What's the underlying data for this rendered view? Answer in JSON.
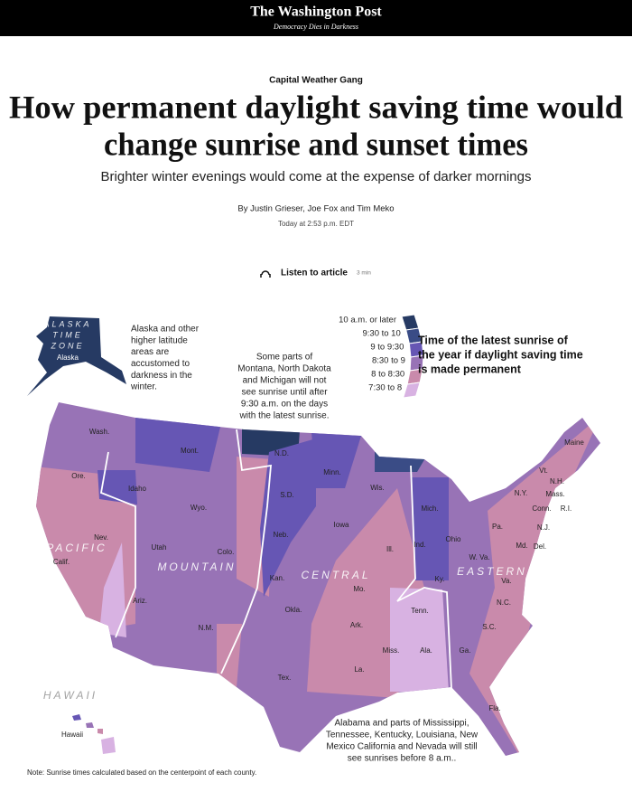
{
  "header": {
    "logo": "The Washington Post",
    "tagline": "Democracy Dies in Darkness"
  },
  "article": {
    "kicker": "Capital Weather Gang",
    "headline": [
      "How permanent daylight saving time would",
      "change sunrise and sunset times"
    ],
    "subheadline": "Brighter winter evenings would come at the expense of darker mornings",
    "byline": "By Justin Grieser, Joe Fox and Tim Meko",
    "timestamp": "Today at 2:53 p.m. EDT",
    "listen": {
      "label": "Listen to article",
      "duration": "3 min"
    }
  },
  "map": {
    "legend": {
      "title": [
        "Time of the latest sunrise of",
        "the year if daylight saving time",
        "is made permanent"
      ],
      "items": [
        {
          "label": "10 a.m. or later",
          "color": "#263a63"
        },
        {
          "label": "9:30 to 10",
          "color": "#3a4c86"
        },
        {
          "label": "9 to 9:30",
          "color": "#6656b4"
        },
        {
          "label": "8:30 to 9",
          "color": "#9873b6"
        },
        {
          "label": "8 to 8:30",
          "color": "#c98aab"
        },
        {
          "label": "7:30 to 8",
          "color": "#d8b2e2"
        }
      ]
    },
    "time_zones": [
      "ALASKA",
      "TIME",
      "ZONE",
      "PACIFIC",
      "MOUNTAIN",
      "CENTRAL",
      "EASTERN",
      "HAWAII"
    ],
    "states": [
      "Alaska",
      "Hawaii",
      "Wash.",
      "Ore.",
      "Calif.",
      "Nev.",
      "Idaho",
      "Mont.",
      "Wyo.",
      "Utah",
      "Colo.",
      "Ariz.",
      "N.M.",
      "N.D.",
      "S.D.",
      "Neb.",
      "Kan.",
      "Okla.",
      "Tex.",
      "Minn.",
      "Iowa",
      "Mo.",
      "Ark.",
      "La.",
      "Wis.",
      "Ill.",
      "Mich.",
      "Ind.",
      "Ohio",
      "Ky.",
      "Tenn.",
      "Miss.",
      "Ala.",
      "Ga.",
      "Fla.",
      "S.C.",
      "N.C.",
      "Va.",
      "W. Va.",
      "Pa.",
      "N.Y.",
      "Md.",
      "Del.",
      "N.J.",
      "Conn.",
      "R.I.",
      "Mass.",
      "N.H.",
      "Vt.",
      "Maine"
    ],
    "annotations": {
      "alaska": [
        "Alaska and other",
        "higher latitude",
        "areas are",
        "accustomed to",
        "darkness in the",
        "winter."
      ],
      "plains": [
        "Some parts of",
        "Montana, North Dakota",
        "and Michigan will not",
        "see sunrise until after",
        "9:30 a.m. on the days",
        "with the latest sunrise."
      ],
      "south": [
        "Alabama and parts of Mississippi,",
        "Tennessee, Kentucky, Louisiana, New",
        "Mexico California and Nevada will still",
        "see sunrises before 8 a.m.."
      ]
    }
  },
  "note": "Note: Sunrise times calculated based on the centerpoint of each county."
}
